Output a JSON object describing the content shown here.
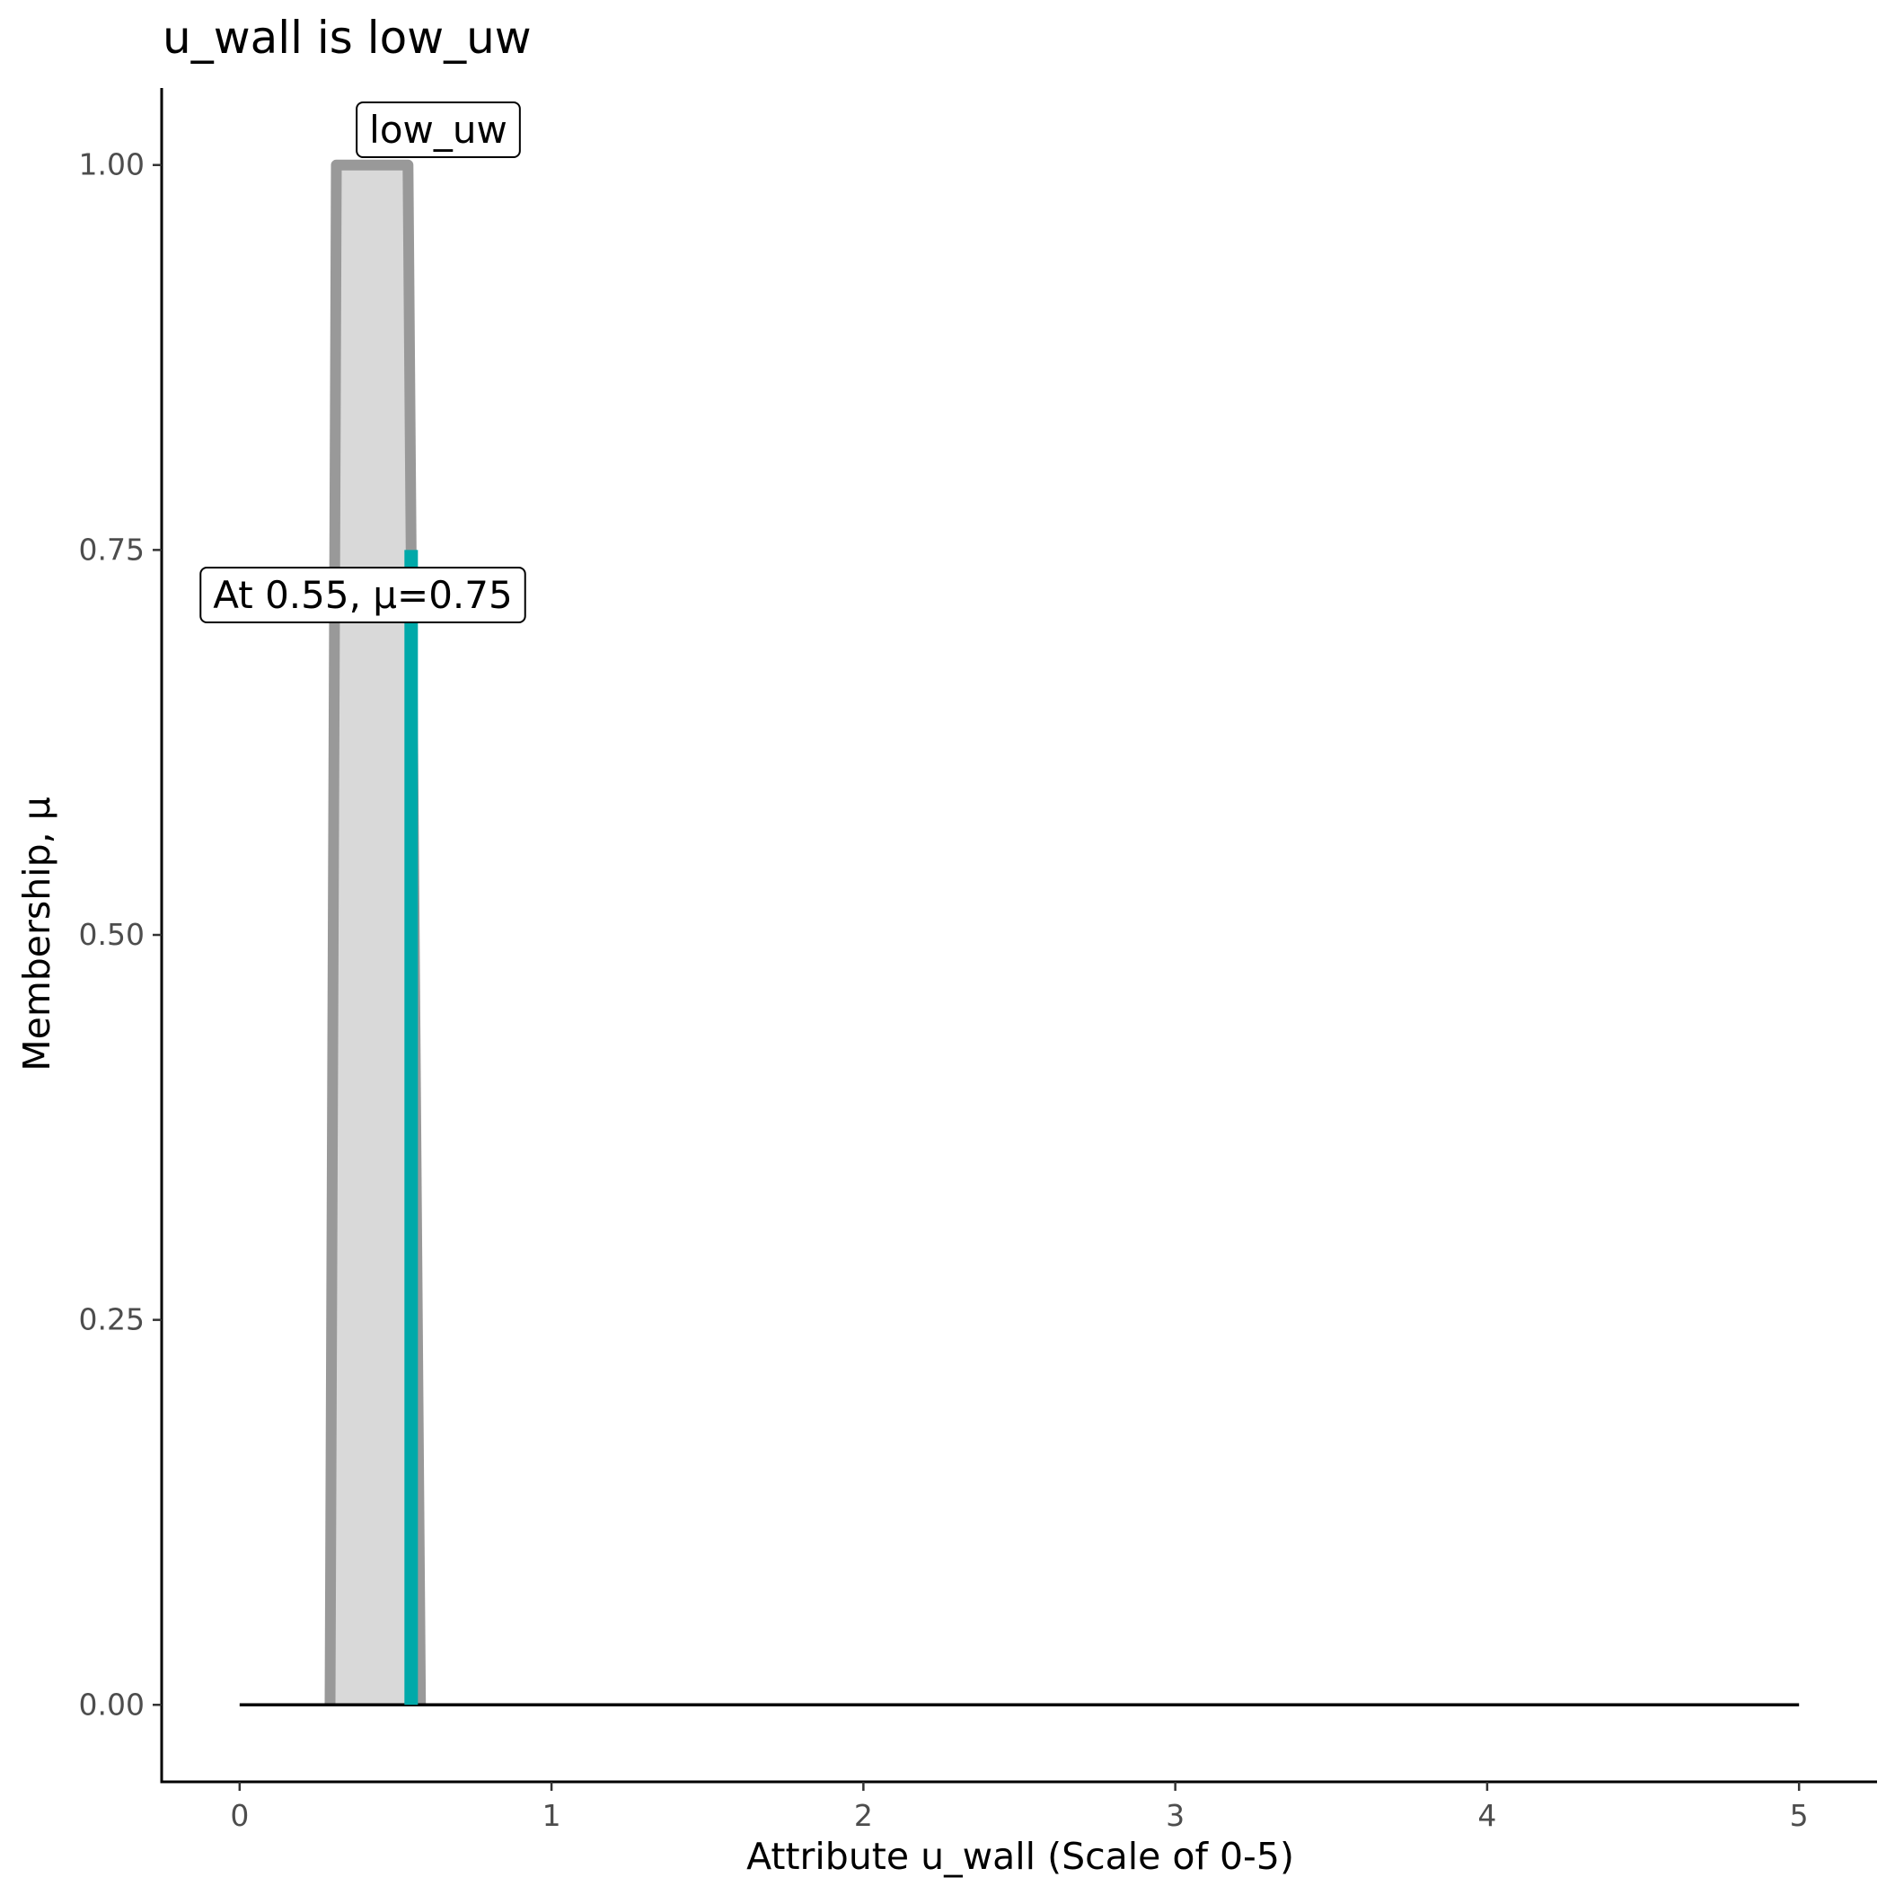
{
  "chart_data": {
    "type": "area",
    "title": "u_wall is low_uw",
    "xlabel": "Attribute u_wall (Scale of 0-5)",
    "ylabel": "Membership, μ",
    "xlim": [
      -0.25,
      5.25
    ],
    "ylim": [
      -0.05,
      1.05
    ],
    "x_ticks": [
      0,
      1,
      2,
      3,
      4,
      5
    ],
    "x_tick_labels": [
      "0",
      "1",
      "2",
      "3",
      "4",
      "5"
    ],
    "y_ticks": [
      0.0,
      0.25,
      0.5,
      0.75,
      1.0
    ],
    "y_tick_labels": [
      "0.00",
      "0.25",
      "0.50",
      "0.75",
      "1.00"
    ],
    "grid": false,
    "legend": "none",
    "series": [
      {
        "name": "low_uw",
        "shape": "trapezoid",
        "x": [
          0.29,
          0.31,
          0.54,
          0.58
        ],
        "y": [
          0,
          1,
          1,
          0
        ],
        "fill": "#d9d9d9",
        "stroke": "#999999"
      }
    ],
    "baseline": {
      "x": [
        0,
        5
      ],
      "y": 0,
      "color": "#000000"
    },
    "marker": {
      "x": 0.55,
      "y": 0.75,
      "color": "#00a9a9"
    },
    "annotations": {
      "set_label": "low_uw",
      "point_label": "At 0.55, μ=0.75"
    }
  }
}
